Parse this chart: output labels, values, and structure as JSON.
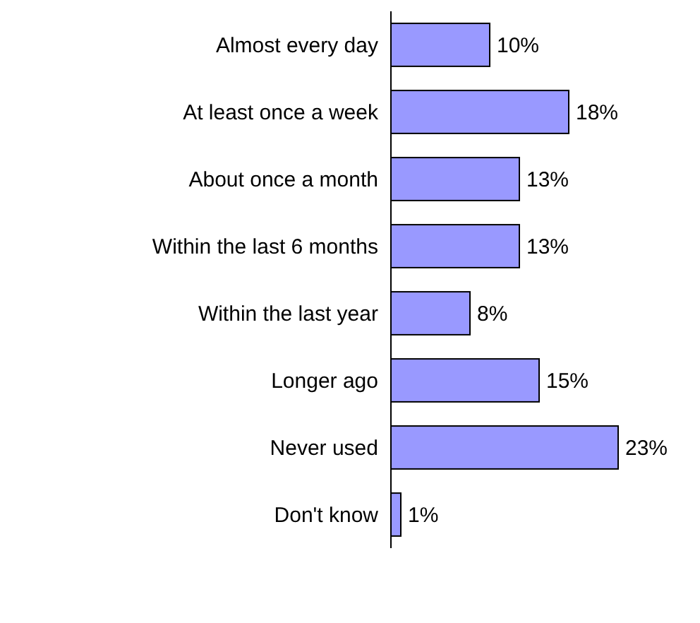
{
  "chart_data": {
    "type": "bar",
    "orientation": "horizontal",
    "categories": [
      "Almost every day",
      "At least once a week",
      "About once a month",
      "Within the last 6 months",
      "Within the last year",
      "Longer ago",
      "Never used",
      "Don't know"
    ],
    "values": [
      10,
      18,
      13,
      13,
      8,
      15,
      23,
      1
    ],
    "color": "#9999ff",
    "data_labels": true,
    "value_labels": [
      "10%",
      "18%",
      "13%",
      "13%",
      "8%",
      "15%",
      "23%",
      "1%"
    ]
  }
}
